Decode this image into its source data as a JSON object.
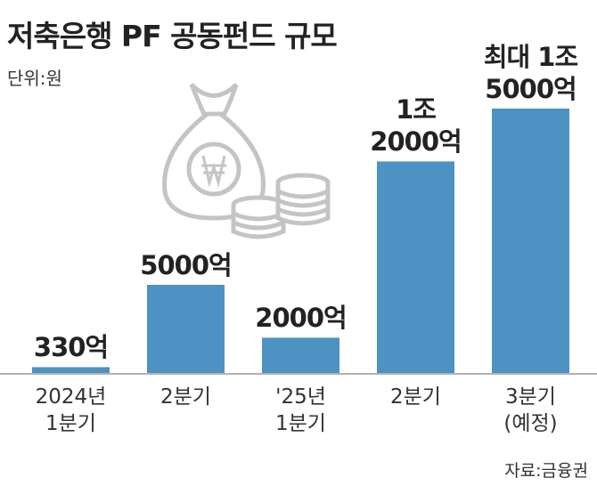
{
  "chart_data": {
    "type": "bar",
    "title": "저축은행 PF 공동펀드 규모",
    "subtitle": "단위:원",
    "categories": [
      "2024년\n1분기",
      "2분기",
      "'25년\n1분기",
      "2분기",
      "3분기\n(예정)"
    ],
    "values": [
      330,
      5000,
      2000,
      12000,
      15000
    ],
    "value_labels": [
      "330억",
      "5000억",
      "2000억",
      "1조\n2000억",
      "최대 1조\n5000억"
    ],
    "color": "#4d92c3",
    "source": "자료:금융권"
  }
}
